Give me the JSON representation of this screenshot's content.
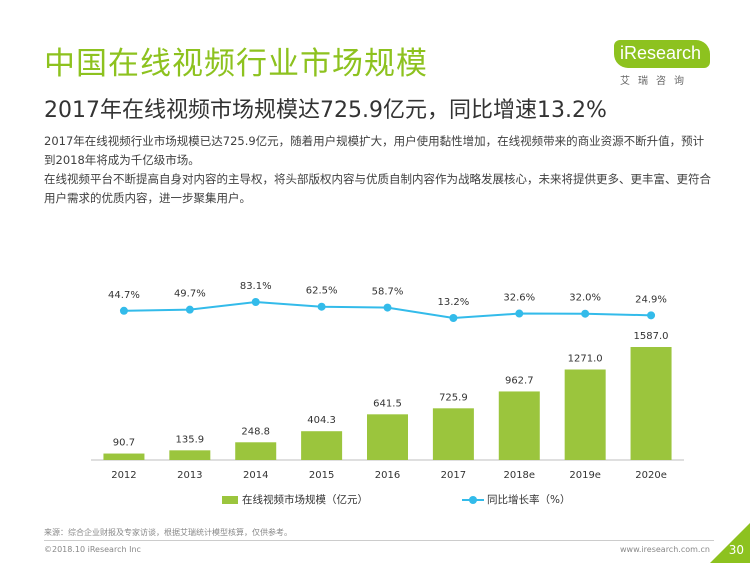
{
  "header": {
    "title": "中国在线视频行业市场规模",
    "subtitle": "2017年在线视频市场规模达725.9亿元，同比增速13.2%",
    "paragraphs": [
      "2017年在线视频行业市场规模已达725.9亿元，随着用户规模扩大，用户使用黏性增加，在线视频带来的商业资源不断升值，预计到2018年将成为千亿级市场。",
      "在线视频平台不断提高自身对内容的主导权，将头部版权内容与优质自制内容作为战略发展核心，未来将提供更多、更丰富、更符合用户需求的优质内容，进一步聚集用户。"
    ]
  },
  "logo": {
    "brand": "iResearch",
    "cn": "艾瑞咨询"
  },
  "colors": {
    "accent": "#8DC21F",
    "bar": "#9BC53D",
    "line": "#33BBEA"
  },
  "chart_data": {
    "type": "bar",
    "categories": [
      "2012",
      "2013",
      "2014",
      "2015",
      "2016",
      "2017",
      "2018e",
      "2019e",
      "2020e"
    ],
    "series": [
      {
        "name": "在线视频市场规模（亿元）",
        "type": "bar",
        "values": [
          90.7,
          135.9,
          248.8,
          404.3,
          641.5,
          725.9,
          962.7,
          1271.0,
          1587.0
        ]
      },
      {
        "name": "同比增长率（%）",
        "type": "line",
        "values": [
          44.7,
          49.7,
          83.1,
          62.5,
          58.7,
          13.2,
          32.6,
          32.0,
          24.9
        ]
      }
    ],
    "bar_labels": [
      "90.7",
      "135.9",
      "248.8",
      "404.3",
      "641.5",
      "725.9",
      "962.7",
      "1271.0",
      "1587.0"
    ],
    "line_labels": [
      "44.7%",
      "49.7%",
      "83.1%",
      "62.5%",
      "58.7%",
      "13.2%",
      "32.6%",
      "32.0%",
      "24.9%"
    ],
    "legend": "bottom",
    "grid": false
  },
  "footer": {
    "source": "来源：综合企业财报及专家访谈，根据艾瑞统计模型核算，仅供参考。",
    "copyright": "©2018.10 iResearch Inc",
    "website": "www.iresearch.com.cn",
    "page": "30"
  }
}
